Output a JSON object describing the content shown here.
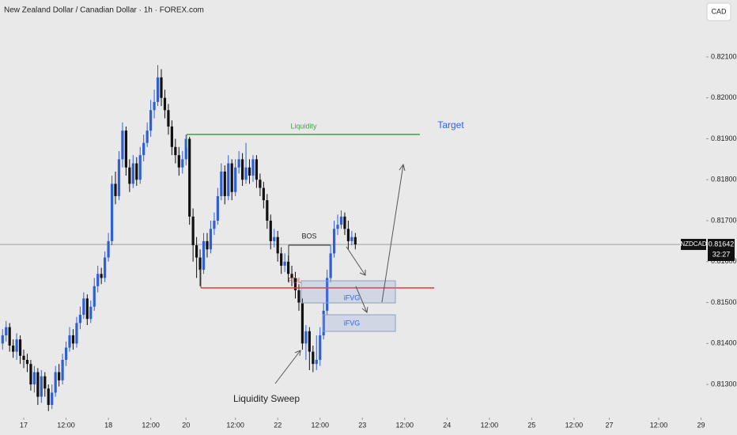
{
  "chart_data": {
    "type": "candlestick",
    "title": "New Zealand Dollar / Canadian Dollar · 1h · FOREX.com",
    "currency_button": "CAD",
    "symbol_label": "NZDCAD",
    "countdown": "32:27",
    "annotations": {
      "liquidity": "Liquidity",
      "target": "Target",
      "bos": "BOS",
      "pdl": "PDL",
      "ifvg": [
        "iFVG",
        "iFVG"
      ],
      "sweep": "Liquidity Sweep"
    },
    "up_color": "#2f5fd6",
    "down_color": "#111111",
    "xlim": [
      -6.73,
      202.2
    ],
    "ylim": [
      0.81219,
      0.82239
    ],
    "xticks": [
      {
        "value": 0,
        "label": "17"
      },
      {
        "value": 12,
        "label": "12:00"
      },
      {
        "value": 24,
        "label": "18"
      },
      {
        "value": 36,
        "label": "12:00"
      },
      {
        "value": 46,
        "label": "20"
      },
      {
        "value": 60,
        "label": "12:00"
      },
      {
        "value": 72,
        "label": "22"
      },
      {
        "value": 84,
        "label": "12:00"
      },
      {
        "value": 96,
        "label": "23"
      },
      {
        "value": 108,
        "label": "12:00"
      },
      {
        "value": 120,
        "label": "24"
      },
      {
        "value": 132,
        "label": "12:00"
      },
      {
        "value": 144,
        "label": "25"
      },
      {
        "value": 156,
        "label": "12:00"
      },
      {
        "value": 166,
        "label": "27"
      },
      {
        "value": 180,
        "label": "12:00"
      },
      {
        "value": 192,
        "label": "29"
      }
    ],
    "yticks": [
      {
        "value": 0.813,
        "label": "0.81300"
      },
      {
        "value": 0.814,
        "label": "0.81400"
      },
      {
        "value": 0.815,
        "label": "0.81500"
      },
      {
        "value": 0.816,
        "label": "0.81600"
      },
      {
        "value": 0.817,
        "label": "0.81700"
      },
      {
        "value": 0.818,
        "label": "0.81800"
      },
      {
        "value": 0.819,
        "label": "0.81900"
      },
      {
        "value": 0.82,
        "label": "0.82000"
      },
      {
        "value": 0.821,
        "label": "0.82100"
      }
    ],
    "x": [
      -6,
      -5,
      -4,
      -3,
      -2,
      -1,
      0,
      1,
      2,
      3,
      4,
      5,
      6,
      7,
      8,
      9,
      10,
      11,
      12,
      13,
      14,
      15,
      16,
      17,
      18,
      19,
      20,
      21,
      22,
      23,
      24,
      25,
      26,
      27,
      28,
      29,
      30,
      31,
      32,
      33,
      34,
      35,
      36,
      37,
      38,
      39,
      40,
      41,
      42,
      43,
      44,
      45,
      46,
      47,
      48,
      49,
      50,
      51,
      52,
      53,
      54,
      55,
      56,
      57,
      58,
      59,
      60,
      61,
      62,
      63,
      64,
      65,
      66,
      67,
      68,
      69,
      70,
      71,
      72,
      73,
      74,
      75,
      76,
      77,
      78,
      79,
      80,
      81,
      82,
      83,
      84,
      85,
      86,
      87,
      88,
      89,
      90,
      91,
      92,
      93,
      94
    ],
    "open": [
      0.814,
      0.8142,
      0.8144,
      0.81395,
      0.8138,
      0.8141,
      0.8137,
      0.8136,
      0.8135,
      0.813,
      0.8133,
      0.8127,
      0.8132,
      0.8129,
      0.8125,
      0.8128,
      0.8133,
      0.8131,
      0.8136,
      0.8139,
      0.8142,
      0.814,
      0.8145,
      0.8147,
      0.8151,
      0.8146,
      0.8149,
      0.8154,
      0.8157,
      0.8156,
      0.8161,
      0.8165,
      0.8179,
      0.8176,
      0.8185,
      0.8192,
      0.8183,
      0.8179,
      0.8184,
      0.818,
      0.8186,
      0.8189,
      0.8192,
      0.8197,
      0.8199,
      0.8205,
      0.82,
      0.8197,
      0.8193,
      0.8188,
      0.8186,
      0.8183,
      0.8185,
      0.819,
      0.8171,
      0.8164,
      0.8161,
      0.8158,
      0.8165,
      0.8163,
      0.8168,
      0.817,
      0.8176,
      0.8182,
      0.8176,
      0.8184,
      0.8177,
      0.8183,
      0.8185,
      0.818,
      0.8183,
      0.8181,
      0.8185,
      0.818,
      0.8178,
      0.8175,
      0.817,
      0.8165,
      0.8166,
      0.8162,
      0.8159,
      0.816,
      0.8157,
      0.8156,
      0.8153,
      0.815,
      0.814,
      0.8143,
      0.8138,
      0.8135,
      0.8136,
      0.8142,
      0.8148,
      0.8156,
      0.8162,
      0.8168,
      0.8169,
      0.8171,
      0.8168,
      0.8165,
      0.8166
    ],
    "high": [
      0.81435,
      0.81455,
      0.8145,
      0.8141,
      0.81425,
      0.8142,
      0.81385,
      0.81375,
      0.8136,
      0.81345,
      0.8134,
      0.81335,
      0.8133,
      0.813,
      0.813,
      0.81345,
      0.8135,
      0.81375,
      0.81405,
      0.8144,
      0.81435,
      0.81465,
      0.8149,
      0.81525,
      0.8152,
      0.81505,
      0.8156,
      0.8159,
      0.81585,
      0.81625,
      0.8167,
      0.8181,
      0.8182,
      0.8187,
      0.8194,
      0.8193,
      0.8185,
      0.8186,
      0.81855,
      0.8188,
      0.8191,
      0.8194,
      0.81995,
      0.8202,
      0.8208,
      0.8207,
      0.8202,
      0.81985,
      0.81945,
      0.819,
      0.8188,
      0.8187,
      0.8191,
      0.81905,
      0.8173,
      0.8166,
      0.8163,
      0.8167,
      0.8167,
      0.817,
      0.8172,
      0.8178,
      0.8184,
      0.81835,
      0.8186,
      0.8185,
      0.8185,
      0.8187,
      0.81865,
      0.8189,
      0.8185,
      0.8186,
      0.8186,
      0.81815,
      0.81795,
      0.81765,
      0.81715,
      0.8168,
      0.81675,
      0.81635,
      0.8162,
      0.81615,
      0.8159,
      0.81575,
      0.81545,
      0.8151,
      0.81445,
      0.8144,
      0.81395,
      0.8142,
      0.8144,
      0.815,
      0.8158,
      0.8164,
      0.817,
      0.81715,
      0.81725,
      0.8172,
      0.817,
      0.81675,
      0.8167
    ],
    "low": [
      0.81385,
      0.81405,
      0.8138,
      0.81365,
      0.8136,
      0.8135,
      0.8134,
      0.8133,
      0.81285,
      0.8128,
      0.8125,
      0.81255,
      0.8127,
      0.81235,
      0.8124,
      0.8127,
      0.81295,
      0.813,
      0.81345,
      0.8138,
      0.81385,
      0.8139,
      0.81435,
      0.8146,
      0.81445,
      0.8145,
      0.8148,
      0.81525,
      0.81545,
      0.8155,
      0.816,
      0.8164,
      0.8174,
      0.8175,
      0.8183,
      0.8181,
      0.8177,
      0.8178,
      0.81785,
      0.8179,
      0.81845,
      0.8188,
      0.81905,
      0.8195,
      0.8198,
      0.8198,
      0.8195,
      0.8191,
      0.8186,
      0.8184,
      0.8181,
      0.81815,
      0.81835,
      0.8169,
      0.816,
      0.8156,
      0.8154,
      0.8157,
      0.8161,
      0.8162,
      0.81665,
      0.8169,
      0.8175,
      0.8174,
      0.8175,
      0.8175,
      0.8176,
      0.81815,
      0.81785,
      0.8179,
      0.8179,
      0.81795,
      0.8178,
      0.8176,
      0.8173,
      0.8168,
      0.8163,
      0.81635,
      0.816,
      0.8157,
      0.81575,
      0.8155,
      0.8154,
      0.8151,
      0.8148,
      0.81385,
      0.8136,
      0.81335,
      0.8133,
      0.81335,
      0.81345,
      0.8141,
      0.8147,
      0.8155,
      0.8161,
      0.81665,
      0.8168,
      0.81665,
      0.8163,
      0.8164,
      0.8163
    ],
    "close": [
      0.8142,
      0.8144,
      0.81395,
      0.8138,
      0.8141,
      0.8137,
      0.8136,
      0.8135,
      0.813,
      0.8133,
      0.8127,
      0.8132,
      0.8129,
      0.8125,
      0.8128,
      0.8133,
      0.8131,
      0.8136,
      0.8139,
      0.8142,
      0.814,
      0.8145,
      0.8147,
      0.8151,
      0.8146,
      0.8149,
      0.8154,
      0.8157,
      0.8156,
      0.8161,
      0.8165,
      0.8179,
      0.8176,
      0.8185,
      0.8192,
      0.8183,
      0.8179,
      0.8184,
      0.818,
      0.8186,
      0.8189,
      0.8192,
      0.8197,
      0.8199,
      0.8205,
      0.82,
      0.8197,
      0.8193,
      0.8188,
      0.8186,
      0.8183,
      0.8185,
      0.819,
      0.8171,
      0.8164,
      0.8161,
      0.8158,
      0.8165,
      0.8163,
      0.8168,
      0.817,
      0.8176,
      0.8182,
      0.8176,
      0.8184,
      0.8177,
      0.8183,
      0.8185,
      0.818,
      0.8183,
      0.8181,
      0.8185,
      0.818,
      0.8178,
      0.8175,
      0.817,
      0.8165,
      0.8166,
      0.8162,
      0.8159,
      0.816,
      0.8157,
      0.8156,
      0.8153,
      0.815,
      0.814,
      0.8143,
      0.8138,
      0.8135,
      0.8136,
      0.8142,
      0.8148,
      0.8156,
      0.8162,
      0.8168,
      0.8169,
      0.8171,
      0.8168,
      0.8165,
      0.8166,
      0.81642
    ]
  }
}
